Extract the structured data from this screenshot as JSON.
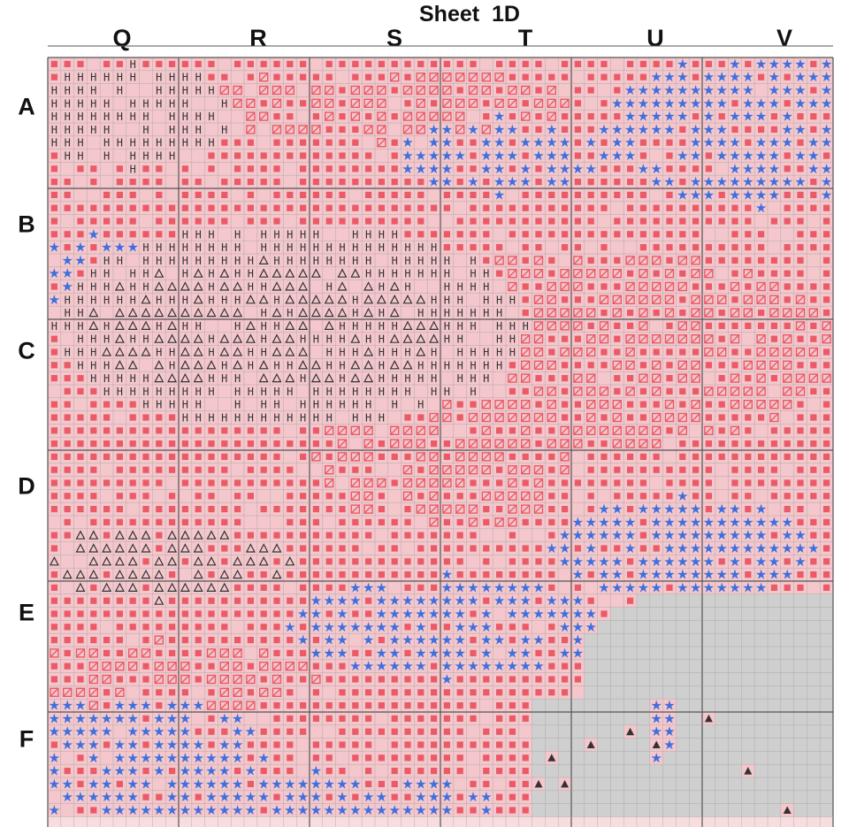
{
  "title": "Sheet  1D",
  "column_labels": [
    "Q",
    "R",
    "S",
    "T",
    "U",
    "V"
  ],
  "row_labels": [
    "A",
    "B",
    "C",
    "D",
    "E",
    "F"
  ],
  "colors": {
    "pink_fill": "#f3c7cc",
    "pink_light": "#f7dde0",
    "red_square": "#ea5a67",
    "blue_star": "#3f6fdc",
    "grey_fill": "#cfcfcf",
    "grid_line": "#9a9a9a",
    "major_grid": "#555555",
    "symbol_dark": "#333333"
  },
  "legend_symbols": [
    {
      "name": "filled-square",
      "color": "red"
    },
    {
      "name": "slashed-square",
      "color": "red"
    },
    {
      "name": "star",
      "color": "blue"
    },
    {
      "name": "H",
      "color": "dark"
    },
    {
      "name": "triangle-outline",
      "color": "dark"
    },
    {
      "name": "triangle-filled",
      "color": "dark"
    }
  ]
}
